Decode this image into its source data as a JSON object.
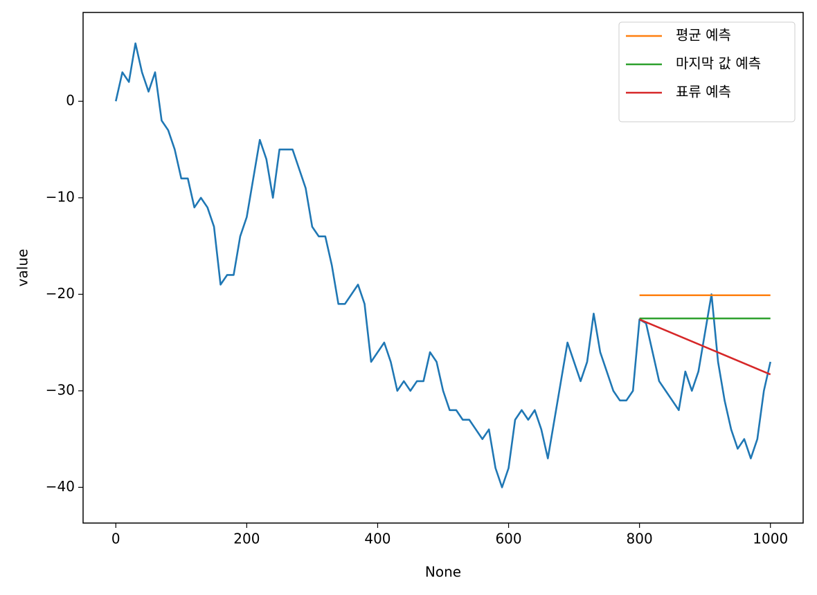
{
  "chart_data": {
    "type": "line",
    "xlabel": "None",
    "ylabel": "value",
    "xlim": [
      -50,
      1050
    ],
    "ylim": [
      -43.7,
      9.2
    ],
    "xticks": [
      0,
      200,
      400,
      600,
      800,
      1000
    ],
    "yticks": [
      0,
      {
        "value": -10,
        "label": "−10"
      },
      {
        "value": -20,
        "label": "−20"
      },
      {
        "value": -30,
        "label": "−30"
      },
      {
        "value": -40,
        "label": "−40"
      }
    ],
    "legend": "upper right",
    "series": [
      {
        "color": "#1f77b4",
        "x": [
          0,
          10,
          20,
          30,
          40,
          50,
          60,
          70,
          80,
          90,
          100,
          110,
          120,
          130,
          140,
          150,
          160,
          170,
          180,
          190,
          200,
          210,
          220,
          230,
          240,
          250,
          260,
          270,
          280,
          290,
          300,
          310,
          320,
          330,
          340,
          350,
          360,
          370,
          380,
          390,
          400,
          410,
          420,
          430,
          440,
          450,
          460,
          470,
          480,
          490,
          500,
          510,
          520,
          530,
          540,
          550,
          560,
          570,
          580,
          590,
          600,
          610,
          620,
          630,
          640,
          650,
          660,
          670,
          680,
          690,
          700,
          710,
          720,
          730,
          740,
          750,
          760,
          770,
          780,
          790,
          800,
          810,
          820,
          830,
          840,
          850,
          860,
          870,
          880,
          890,
          900,
          910,
          920,
          930,
          940,
          950,
          960,
          970,
          980,
          990,
          1000
        ],
        "values": [
          0,
          3,
          2,
          6,
          3,
          1,
          3,
          -2,
          -3,
          -5,
          -8,
          -8,
          -11,
          -10,
          -11,
          -13,
          -19,
          -18,
          -18,
          -14,
          -12,
          -8,
          -4,
          -6,
          -10,
          -5,
          -5,
          -5,
          -7,
          -9,
          -13,
          -14,
          -14,
          -17,
          -21,
          -21,
          -20,
          -19,
          -21,
          -27,
          -26,
          -25,
          -27,
          -30,
          -29,
          -30,
          -29,
          -29,
          -26,
          -27,
          -30,
          -32,
          -32,
          -33,
          -33,
          -34,
          -35,
          -34,
          -38,
          -40,
          -38,
          -33,
          -32,
          -33,
          -32,
          -34,
          -37,
          -33,
          -29,
          -25,
          -27,
          -29,
          -27,
          -22,
          -26,
          -28,
          -30,
          -31,
          -31,
          -30,
          -22.6,
          -23,
          -26,
          -29,
          -30,
          -31,
          -32,
          -28,
          -30,
          -28,
          -24,
          -20,
          -27,
          -31,
          -34,
          -36,
          -35,
          -37,
          -35,
          -30,
          -27
        ]
      },
      {
        "name": "평균 예측",
        "color": "#ff7f0e",
        "x": [
          800,
          1000
        ],
        "values": [
          -20.1,
          -20.1
        ]
      },
      {
        "name": "마지막 값 예측",
        "color": "#2ca02c",
        "x": [
          800,
          1000
        ],
        "values": [
          -22.5,
          -22.5
        ]
      },
      {
        "name": "표류 예측",
        "color": "#d62728",
        "x": [
          800,
          1000
        ],
        "values": [
          -22.6,
          -28.3
        ]
      }
    ]
  }
}
